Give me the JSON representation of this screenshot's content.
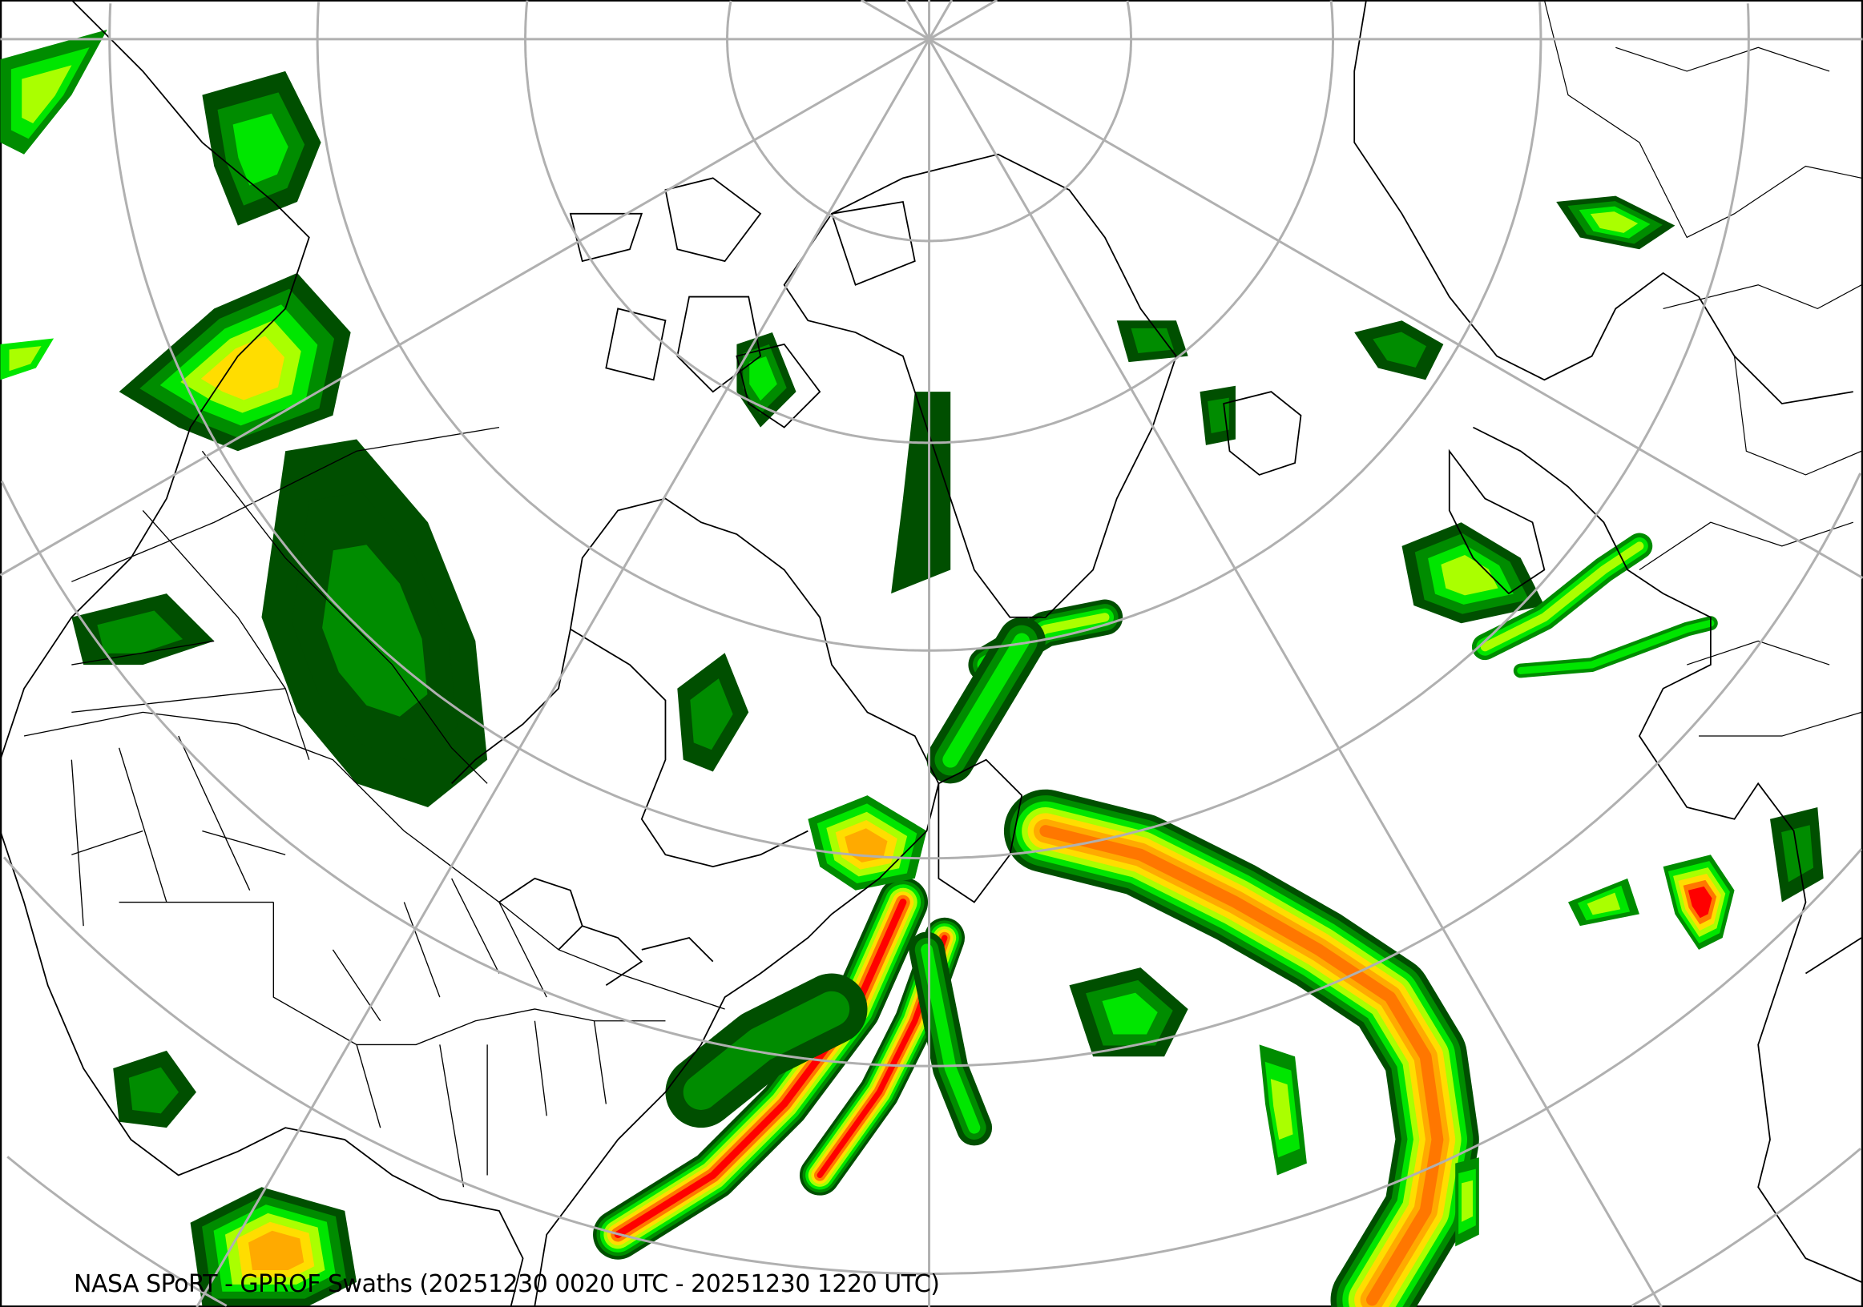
{
  "map": {
    "caption": "NASA SPoRT - GPROF Swaths (20251230 0020 UTC - 20251230 1220 UTC)",
    "projection": "north-polar stereographic",
    "graticule_color": "#b0b0b0",
    "coastline_color": "#000000",
    "precip_palette": [
      "#004f00",
      "#008c00",
      "#00e600",
      "#aaff00",
      "#ffdd00",
      "#ffaa00",
      "#ff7700",
      "#ff0000"
    ]
  }
}
